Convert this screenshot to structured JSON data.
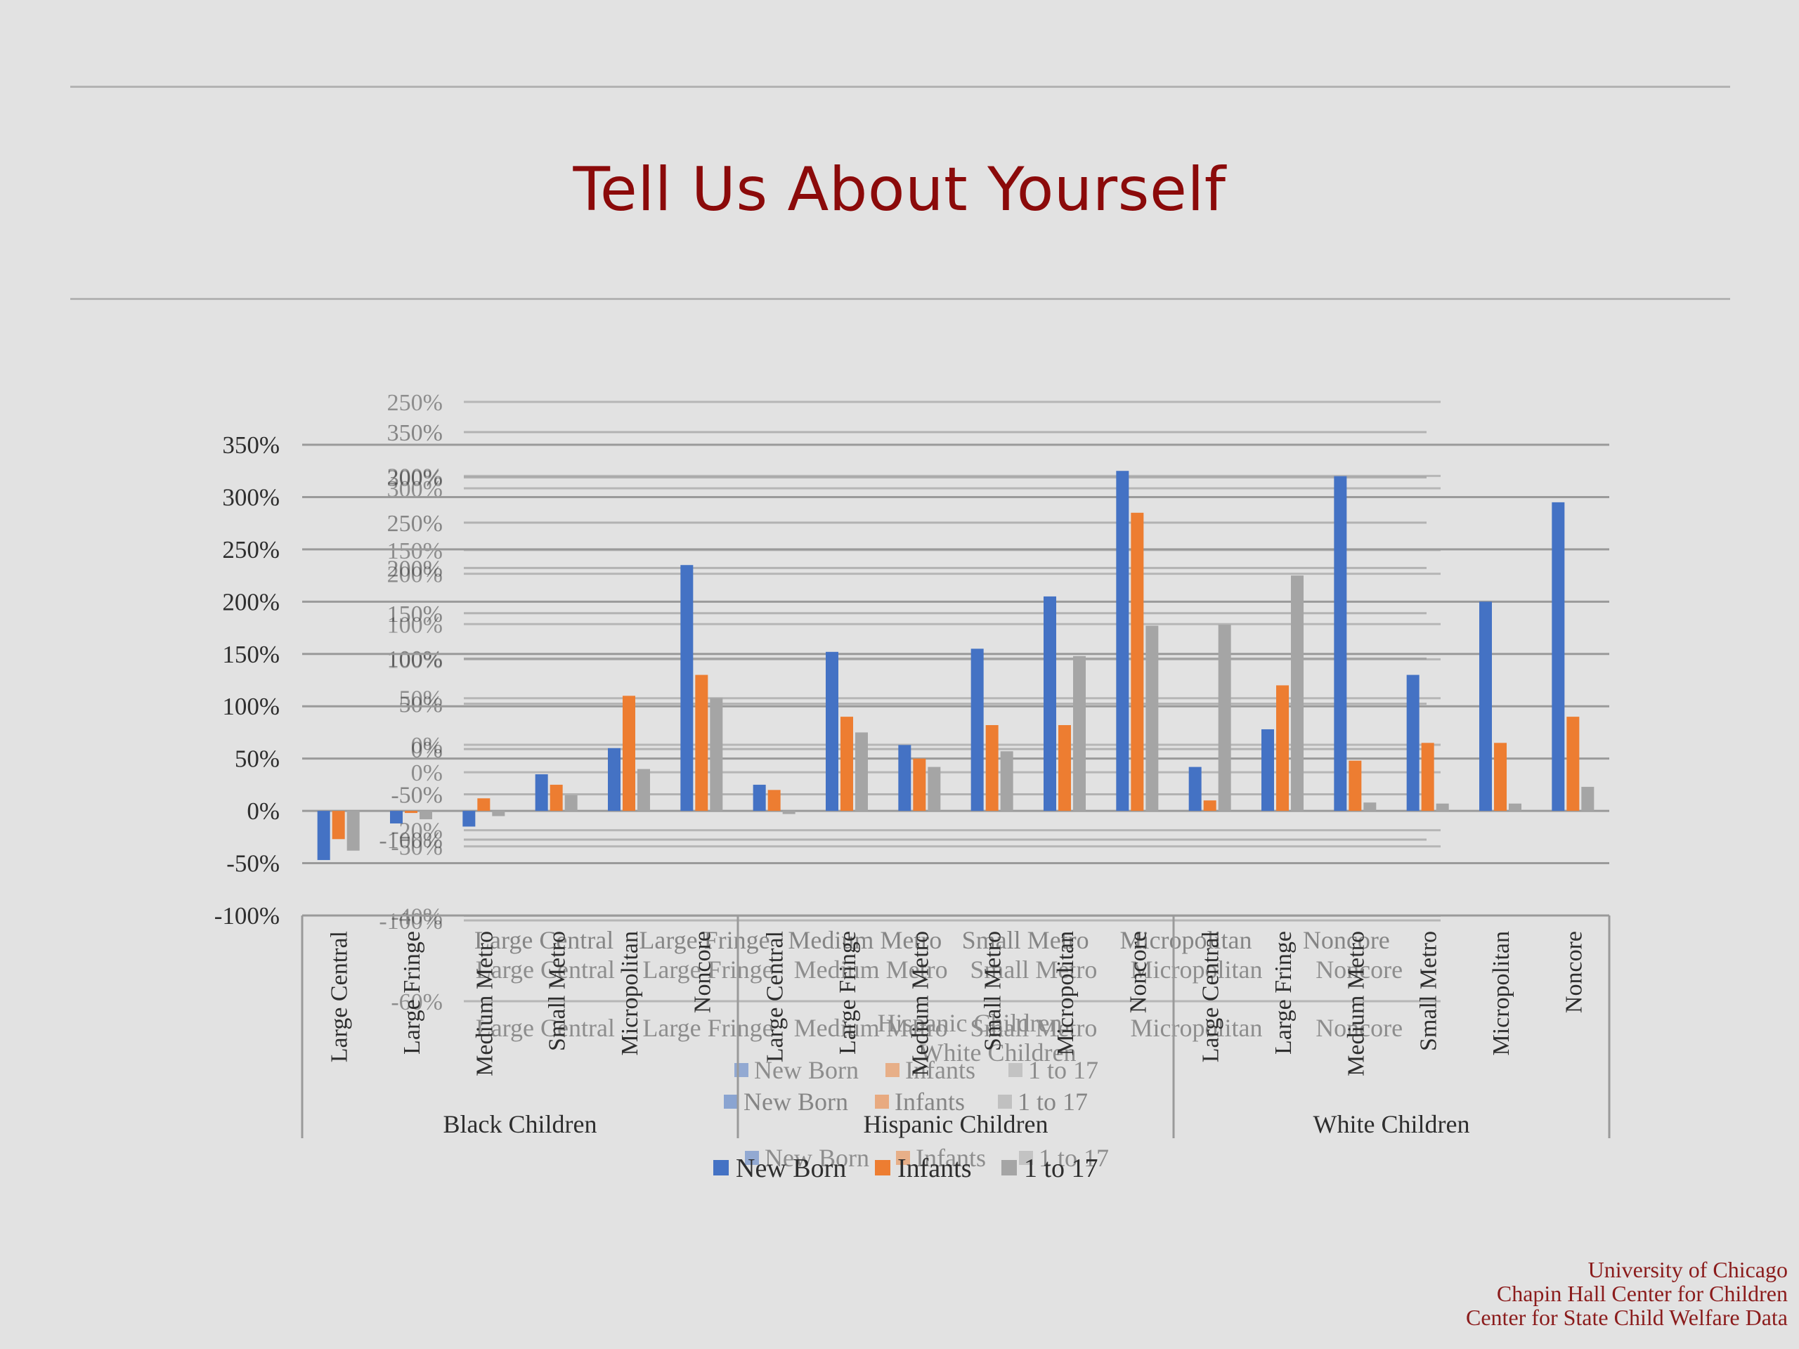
{
  "slide": {
    "title": "Tell Us About Yourself",
    "footer": [
      "University of Chicago",
      "Chapin Hall Center for Children",
      "Center for State Child Welfare Data"
    ]
  },
  "colors": {
    "new_born": "#4472c4",
    "infants": "#ed7d31",
    "one_to_17": "#a5a5a5",
    "title": "#8b0a0a",
    "background": "#e2e2e2"
  },
  "chart_data": {
    "type": "bar",
    "title": "",
    "xlabel": "",
    "ylabel": "",
    "ylim": [
      -100,
      350
    ],
    "yticks": [
      -100,
      -50,
      0,
      50,
      100,
      150,
      200,
      250,
      300,
      350
    ],
    "ytick_labels": [
      "-100%",
      "-50%",
      "0%",
      "50%",
      "100%",
      "150%",
      "200%",
      "250%",
      "300%",
      "350%"
    ],
    "grid": true,
    "legend_position": "bottom",
    "groups": [
      {
        "name": "Black Children",
        "count": 6
      },
      {
        "name": "Hispanic Children",
        "count": 6
      },
      {
        "name": "White Children",
        "count": 6
      }
    ],
    "categories": [
      "Large Central",
      "Large Fringe",
      "Medium Metro",
      "Small Metro",
      "Micropolitan",
      "Noncore",
      "Large Central",
      "Large Fringe",
      "Medium Metro",
      "Small Metro",
      "Micropolitan",
      "Noncore",
      "Large Central",
      "Large Fringe",
      "Medium Metro",
      "Small Metro",
      "Micropolitan",
      "Noncore"
    ],
    "series": [
      {
        "name": "New Born",
        "values": [
          -47,
          -12,
          -15,
          35,
          60,
          235,
          25,
          152,
          63,
          155,
          205,
          325,
          42,
          78,
          320,
          130,
          200,
          295
        ]
      },
      {
        "name": "Infants",
        "values": [
          -27,
          -2,
          12,
          25,
          110,
          130,
          20,
          90,
          50,
          82,
          82,
          285,
          10,
          120,
          48,
          65,
          65,
          90
        ]
      },
      {
        "name": "1 to 17",
        "values": [
          -38,
          -8,
          -5,
          15,
          40,
          108,
          -3,
          75,
          42,
          57,
          148,
          177,
          178,
          225,
          8,
          7,
          7,
          23
        ]
      }
    ],
    "ghost_overlays": [
      {
        "ylim": [
          -60,
          350
        ],
        "ytick_labels": [
          "350%",
          "300%",
          "250%",
          "200%",
          "150%",
          "100%",
          "50%",
          "0%",
          "-50%",
          "-100%"
        ],
        "categories": [
          "Large Central",
          "Large Fringe",
          "Medium Metro",
          "Small Metro",
          "Micropolitan",
          "Noncore"
        ],
        "legend": [
          "New Born",
          "Infants",
          "1 to 17"
        ]
      },
      {
        "ylim": [
          -60,
          250
        ],
        "ytick_labels": [
          "250%",
          "200%",
          "150%",
          "100%",
          "50%",
          "0%",
          "-50%",
          "-100%"
        ],
        "categories": [
          "Large Central",
          "Large Fringe",
          "Medium Metro",
          "Small Metro",
          "Micropolitan",
          "Noncore"
        ],
        "legend": [
          "New Born",
          "Infants",
          "1 to 17"
        ]
      },
      {
        "ylim": [
          -60,
          300
        ],
        "ytick_labels": [
          "300%",
          "200%",
          "100%",
          "0%",
          "-20%",
          "-40%",
          "-60%"
        ],
        "categories": [
          "Large Central",
          "Large Fringe",
          "Medium Metro",
          "Small Metro",
          "Micropolitan",
          "Noncore"
        ],
        "group_labels": [
          "Hispanic Children",
          "White Children"
        ],
        "legend": [
          "New Born",
          "Infants",
          "1 to 17"
        ]
      }
    ]
  }
}
